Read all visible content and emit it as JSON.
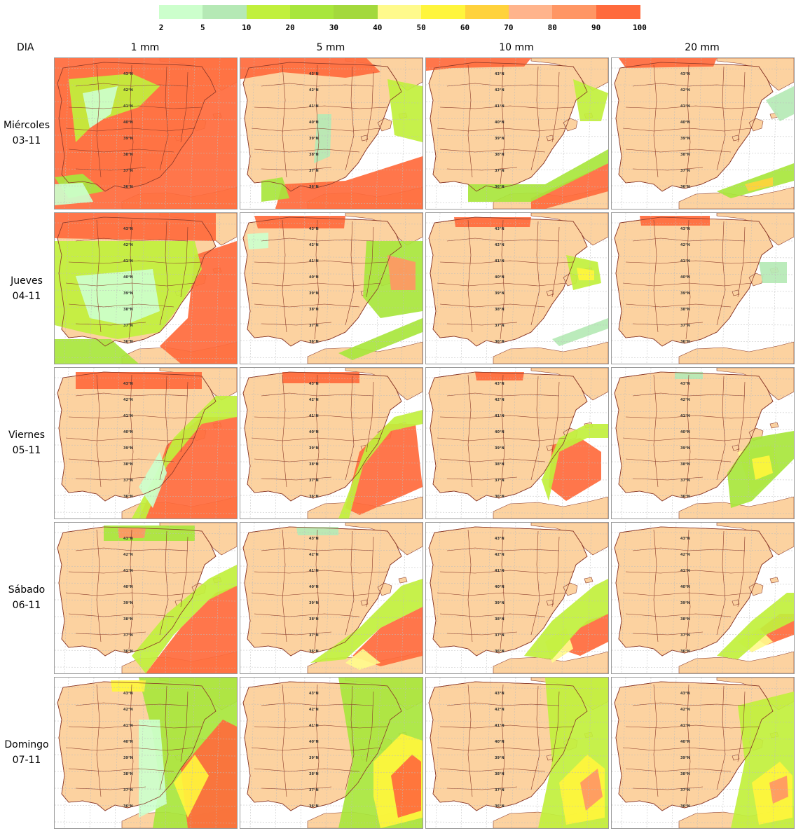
{
  "legend": {
    "ticks": [
      "2",
      "5",
      "10",
      "20",
      "30",
      "40",
      "50",
      "60",
      "70",
      "80",
      "90",
      "100"
    ],
    "colors": [
      "#ccffcc",
      "#b5e9b5",
      "#c1f03c",
      "#a8e63c",
      "#a3d93c",
      "#fffa8c",
      "#fff53c",
      "#ffd23c",
      "#ffb48c",
      "#ff9664",
      "#ff6a3c"
    ]
  },
  "header": {
    "row_label": "DIA",
    "columns": [
      "1 mm",
      "5 mm",
      "10 mm",
      "20 mm"
    ]
  },
  "rows": [
    {
      "day": "Miércoles",
      "date": "03-11"
    },
    {
      "day": "Jueves",
      "date": "04-11"
    },
    {
      "day": "Viernes",
      "date": "05-11"
    },
    {
      "day": "Sábado",
      "date": "06-11"
    },
    {
      "day": "Domingo",
      "date": "07-11"
    }
  ],
  "map": {
    "land_color": "#fcd2a0",
    "border_color": "#8b3a2a",
    "latitude_labels": [
      "43°N",
      "42°N",
      "41°N",
      "40°N",
      "39°N",
      "38°N",
      "37°N",
      "36°N"
    ]
  }
}
